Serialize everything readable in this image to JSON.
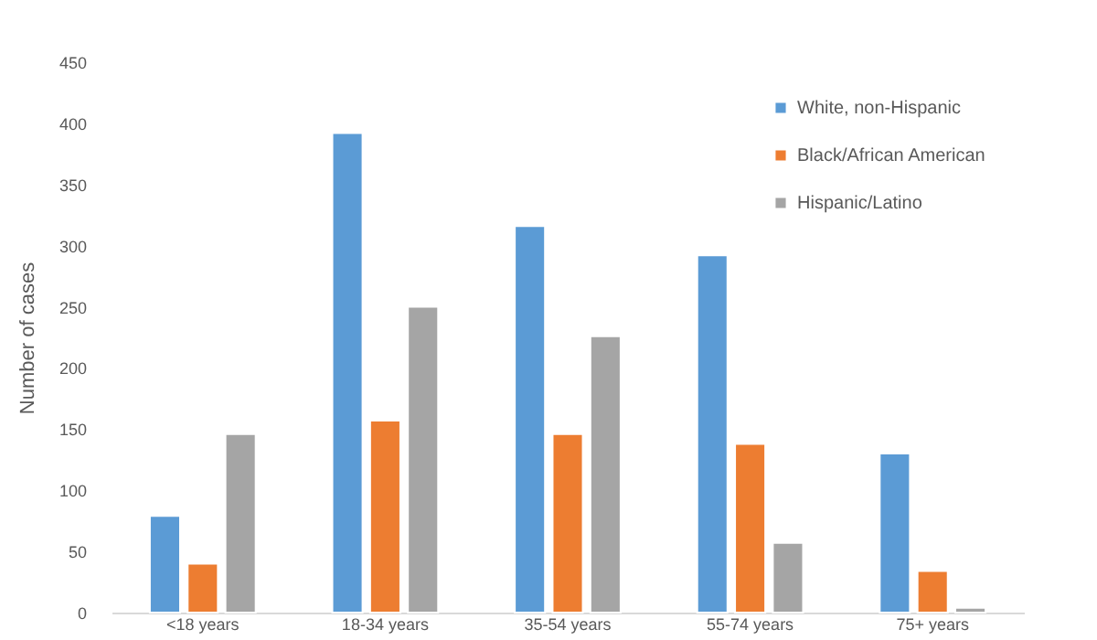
{
  "chart_data": {
    "type": "bar",
    "ylabel": "Number of cases",
    "categories": [
      "<18 years",
      "18-34 years",
      "35-54 years",
      "55-74 years",
      "75+ years"
    ],
    "series": [
      {
        "name": "White, non-Hispanic",
        "color": "#5b9bd5",
        "values": [
          79,
          392,
          316,
          292,
          130
        ]
      },
      {
        "name": "Black/African American",
        "color": "#ed7d31",
        "values": [
          40,
          157,
          146,
          138,
          34
        ]
      },
      {
        "name": "Hispanic/Latino",
        "color": "#a5a5a5",
        "values": [
          146,
          250,
          226,
          57,
          4
        ]
      }
    ],
    "ylim": [
      0,
      450
    ],
    "yticks": [
      0,
      50,
      100,
      150,
      200,
      250,
      300,
      350,
      400,
      450
    ],
    "grid": false,
    "legend": "right"
  }
}
